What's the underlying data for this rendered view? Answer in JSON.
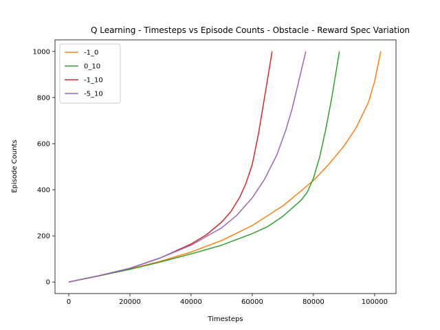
{
  "chart_data": {
    "type": "line",
    "title": "Q Learning - Timesteps vs Episode Counts - Obstacle - Reward Spec Variation",
    "xlabel": "Timesteps",
    "ylabel": "Episode Counts",
    "xlim": [
      -4500,
      107000
    ],
    "ylim": [
      -50,
      1050
    ],
    "xticks": [
      0,
      20000,
      40000,
      60000,
      80000,
      100000
    ],
    "yticks": [
      0,
      200,
      400,
      600,
      800,
      1000
    ],
    "grid": false,
    "legend_position": "top-left",
    "series": [
      {
        "name": "-1_0",
        "color": "#ff7f0e",
        "x": [
          0,
          10000,
          20000,
          30000,
          40000,
          50000,
          60000,
          70000,
          75000,
          80000,
          85000,
          90000,
          94000,
          98000,
          100000,
          102000
        ],
        "y": [
          0,
          27,
          56,
          90,
          130,
          180,
          245,
          330,
          385,
          440,
          510,
          590,
          670,
          780,
          870,
          1000
        ]
      },
      {
        "name": "0_10",
        "color": "#2ca02c",
        "x": [
          0,
          10000,
          20000,
          30000,
          40000,
          50000,
          60000,
          65000,
          70000,
          73000,
          76000,
          78000,
          80000,
          82000,
          84000,
          86000,
          88500
        ],
        "y": [
          0,
          27,
          55,
          87,
          122,
          160,
          210,
          240,
          285,
          320,
          355,
          390,
          450,
          540,
          660,
          800,
          1000
        ]
      },
      {
        "name": "-1_10",
        "color": "#d62728",
        "x": [
          0,
          10000,
          20000,
          30000,
          40000,
          45000,
          50000,
          53000,
          56000,
          58000,
          60000,
          62000,
          63500,
          65000,
          66500
        ],
        "y": [
          0,
          28,
          59,
          105,
          165,
          205,
          260,
          305,
          370,
          430,
          510,
          640,
          760,
          880,
          1000
        ]
      },
      {
        "name": "-5_10",
        "color": "#9467bd",
        "x": [
          0,
          10000,
          20000,
          30000,
          40000,
          50000,
          55000,
          60000,
          64000,
          68000,
          71000,
          73000,
          75000,
          77500
        ],
        "y": [
          0,
          28,
          60,
          105,
          160,
          235,
          290,
          365,
          445,
          550,
          660,
          750,
          860,
          1000
        ]
      }
    ]
  }
}
